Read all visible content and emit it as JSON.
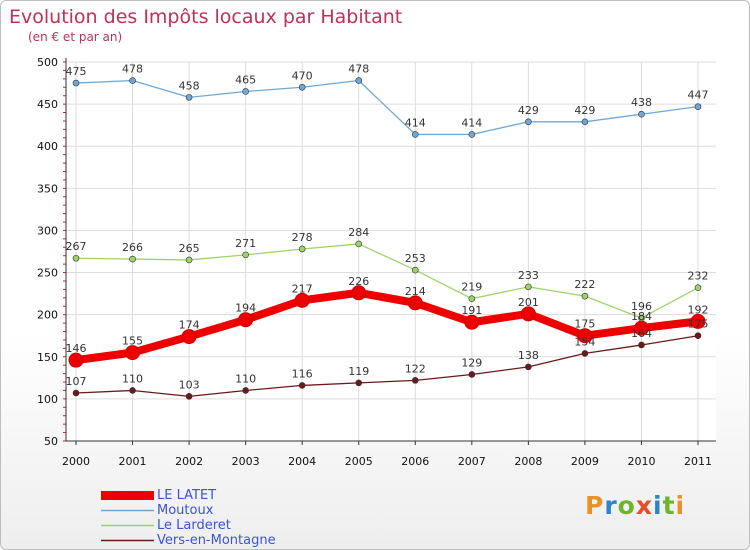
{
  "header": {
    "title": "Evolution des Impôts locaux par Habitant",
    "subtitle": "(en € et par an)"
  },
  "logo": {
    "text": "Proxiti",
    "colors": [
      "#e8922a",
      "#2b84c8",
      "#6fb52c",
      "#e84a2a",
      "#2b84c8",
      "#6fb52c",
      "#e8922a"
    ]
  },
  "chart_data": {
    "type": "line",
    "x": [
      "2000",
      "2001",
      "2002",
      "2003",
      "2004",
      "2005",
      "2006",
      "2007",
      "2008",
      "2009",
      "2010",
      "2011"
    ],
    "ylim": [
      50,
      500
    ],
    "yticks": [
      50,
      100,
      150,
      200,
      250,
      300,
      350,
      400,
      450,
      500
    ],
    "grid": true,
    "legend_position": "bottom-left",
    "series": [
      {
        "name": "LE LATET",
        "color": "#ee0000",
        "values": [
          146,
          155,
          174,
          194,
          217,
          226,
          214,
          191,
          201,
          175,
          184,
          192
        ]
      },
      {
        "name": "Moutoux",
        "color": "#6fa8d6",
        "values": [
          475,
          478,
          458,
          465,
          470,
          478,
          414,
          414,
          429,
          429,
          438,
          447
        ]
      },
      {
        "name": "Le Larderet",
        "color": "#9ed36a",
        "values": [
          267,
          266,
          265,
          271,
          278,
          284,
          253,
          219,
          233,
          222,
          196,
          232
        ]
      },
      {
        "name": "Vers-en-Montagne",
        "color": "#6b1a1a",
        "values": [
          107,
          110,
          103,
          110,
          116,
          119,
          122,
          129,
          138,
          154,
          164,
          175
        ]
      }
    ]
  }
}
